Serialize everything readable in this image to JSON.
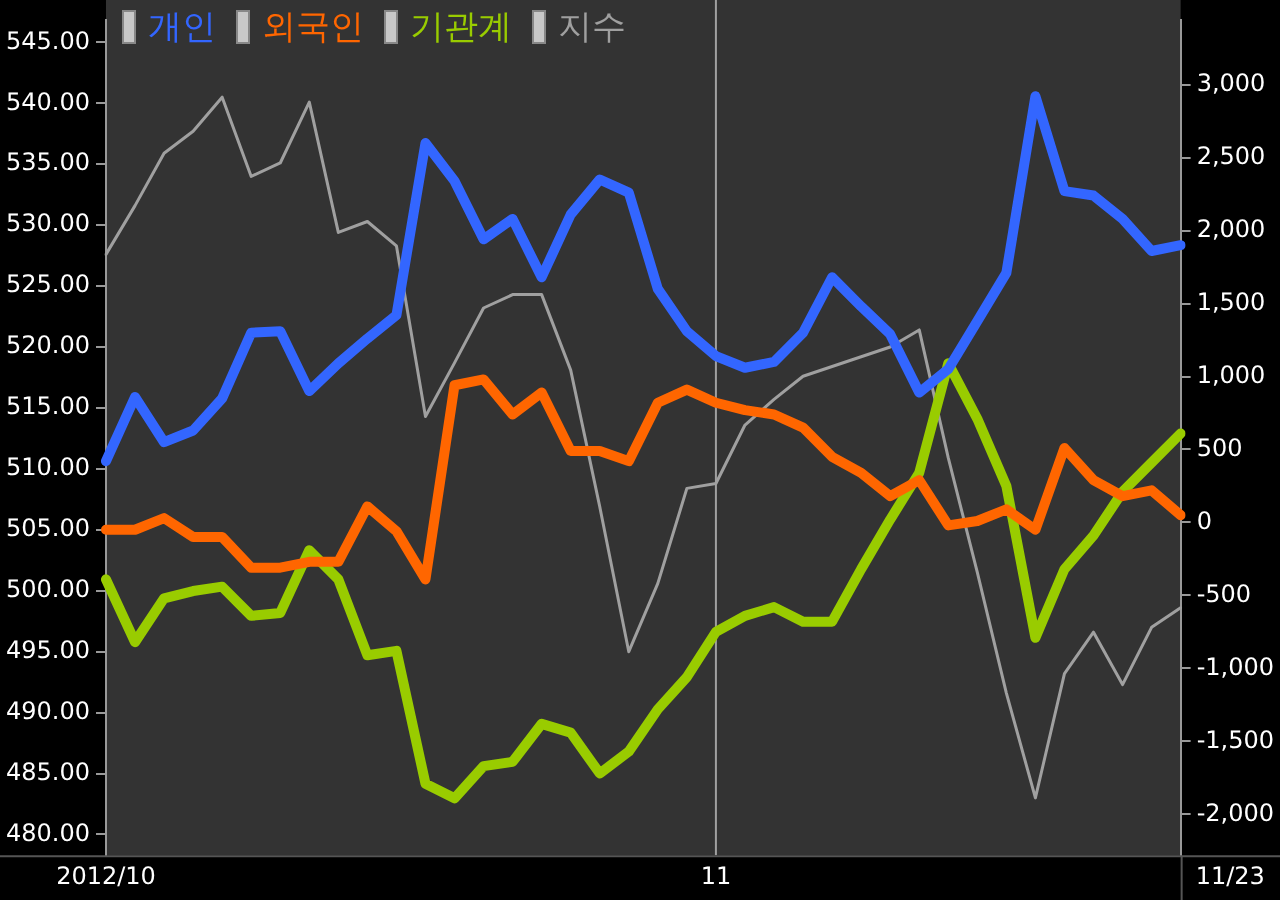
{
  "chart_data": {
    "type": "line",
    "categories": [
      "2012/10",
      null,
      null,
      null,
      null,
      null,
      null,
      null,
      null,
      null,
      null,
      null,
      null,
      null,
      null,
      null,
      null,
      null,
      null,
      null,
      null,
      "11",
      null,
      null,
      null,
      null,
      null,
      null,
      null,
      null,
      null,
      null,
      null,
      null,
      null,
      null,
      null,
      null
    ],
    "series": [
      {
        "name": "개인",
        "color": "#3366ff",
        "axis": "y2",
        "values": [
          420,
          860,
          550,
          630,
          850,
          1300,
          1310,
          900,
          1090,
          1260,
          1420,
          2600,
          2340,
          1940,
          2080,
          1680,
          2110,
          2350,
          2260,
          1600,
          1310,
          1140,
          1060,
          1100,
          1300,
          1680,
          1480,
          1290,
          890,
          1050,
          1380,
          1710,
          2920,
          2270,
          2240,
          2080,
          1860,
          1900
        ]
      },
      {
        "name": "외국인",
        "color": "#ff6600",
        "axis": "y2",
        "values": [
          -50,
          -50,
          30,
          -100,
          -100,
          -310,
          -310,
          -270,
          -270,
          110,
          -60,
          -390,
          940,
          980,
          740,
          890,
          490,
          490,
          420,
          820,
          910,
          820,
          770,
          740,
          650,
          450,
          340,
          180,
          290,
          -20,
          10,
          90,
          -50,
          510,
          290,
          180,
          220,
          50
        ]
      },
      {
        "name": "기관계",
        "color": "#99cc00",
        "axis": "y2",
        "values": [
          -390,
          -820,
          -520,
          -470,
          -440,
          -640,
          -620,
          -190,
          -390,
          -910,
          -880,
          -1790,
          -1890,
          -1670,
          -1640,
          -1380,
          -1440,
          -1720,
          -1570,
          -1280,
          -1060,
          -750,
          -640,
          -580,
          -680,
          -680,
          -320,
          20,
          340,
          1090,
          710,
          250,
          -790,
          -320,
          -90,
          210,
          410,
          610
        ]
      },
      {
        "name": "지수",
        "color": "#a0a0a0",
        "axis": "y",
        "values": [
          527.6,
          531.6,
          535.9,
          537.7,
          540.5,
          534.0,
          535.1,
          540.1,
          529.4,
          530.3,
          528.3,
          514.3,
          518.7,
          523.2,
          524.3,
          524.3,
          518.1,
          506.9,
          495.0,
          500.6,
          508.4,
          508.8,
          513.6,
          515.7,
          517.6,
          518.4,
          519.2,
          520.0,
          521.4,
          510.9,
          501.5,
          491.6,
          483.0,
          493.2,
          496.6,
          492.3,
          497.0,
          498.6
        ]
      }
    ],
    "ylim": [
      478.3,
      546.8
    ],
    "yticks": [
      {
        "value": 480,
        "label": "480.00"
      },
      {
        "value": 485,
        "label": "485.00"
      },
      {
        "value": 490,
        "label": "490.00"
      },
      {
        "value": 495,
        "label": "495.00"
      },
      {
        "value": 500,
        "label": "500.00"
      },
      {
        "value": 505,
        "label": "505.00"
      },
      {
        "value": 510,
        "label": "510.00"
      },
      {
        "value": 515,
        "label": "515.00"
      },
      {
        "value": 520,
        "label": "520.00"
      },
      {
        "value": 525,
        "label": "525.00"
      },
      {
        "value": 530,
        "label": "530.00"
      },
      {
        "value": 535,
        "label": "535.00"
      },
      {
        "value": 540,
        "label": "540.00"
      },
      {
        "value": 545,
        "label": "545.00"
      }
    ],
    "y2lim": [
      -2280,
      3440
    ],
    "y2ticks": [
      {
        "value": -2000,
        "label": "-2,000"
      },
      {
        "value": -1500,
        "label": "-1,500"
      },
      {
        "value": -1000,
        "label": "-1,000"
      },
      {
        "value": -500,
        "label": "-500"
      },
      0,
      {
        "value": 500,
        "label": "500"
      },
      {
        "value": 1000,
        "label": "1,000"
      },
      {
        "value": 1500,
        "label": "1,500"
      },
      {
        "value": 2000,
        "label": "2,000"
      },
      {
        "value": 2500,
        "label": "2,500"
      },
      {
        "value": 3000,
        "label": "3,000"
      }
    ],
    "ref_lines": [
      {
        "axis": "x",
        "value": "11",
        "color": "#a0a0a0"
      }
    ],
    "annotations": [
      "11/23"
    ],
    "legend": "top left",
    "marker": "none",
    "grid": false
  }
}
